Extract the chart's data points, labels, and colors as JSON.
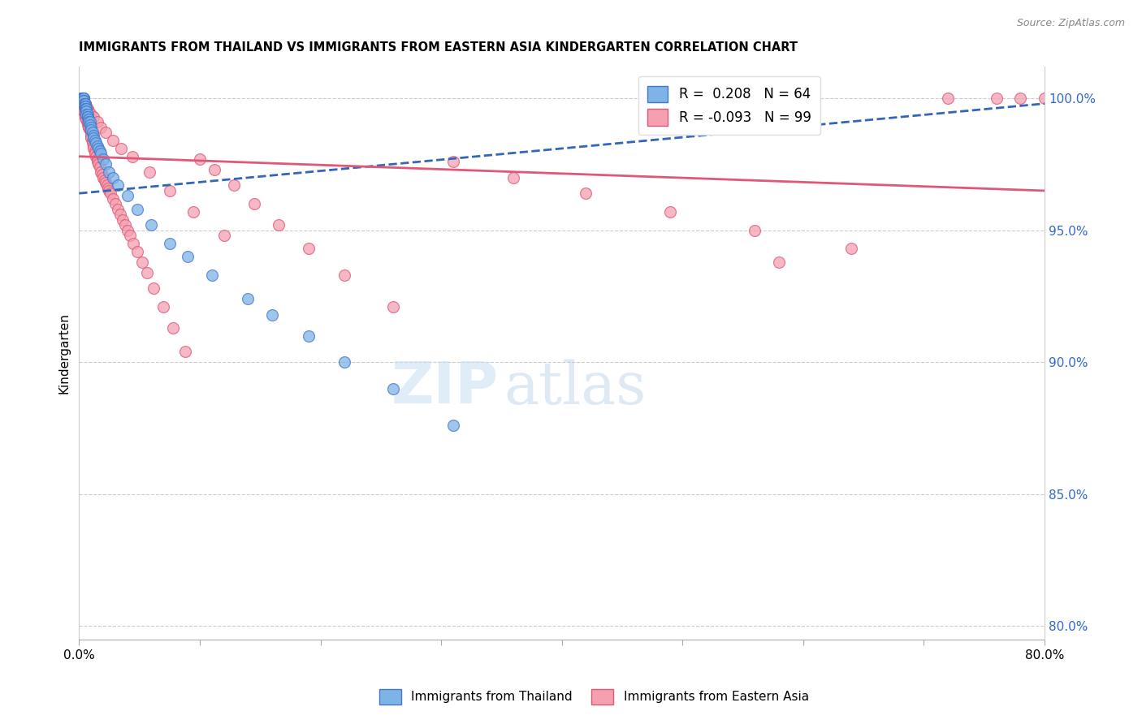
{
  "title": "IMMIGRANTS FROM THAILAND VS IMMIGRANTS FROM EASTERN ASIA KINDERGARTEN CORRELATION CHART",
  "source": "Source: ZipAtlas.com",
  "ylabel_label": "Kindergarten",
  "right_ytick_vals": [
    1.0,
    0.95,
    0.9,
    0.85,
    0.8
  ],
  "right_ytick_labels": [
    "100.0%",
    "95.0%",
    "90.0%",
    "85.0%",
    "80.0%"
  ],
  "xlim": [
    0.0,
    0.8
  ],
  "ylim": [
    0.795,
    1.012
  ],
  "blue_R": "0.208",
  "blue_N": "64",
  "pink_R": "-0.093",
  "pink_N": "99",
  "blue_color": "#7EB3E8",
  "pink_color": "#F4A0B0",
  "blue_edge_color": "#4477CC",
  "pink_edge_color": "#E05878",
  "blue_line_color": "#3366BB",
  "pink_line_color": "#E05878",
  "legend_label_blue": "Immigrants from Thailand",
  "legend_label_pink": "Immigrants from Eastern Asia",
  "watermark_zip": "ZIP",
  "watermark_atlas": "atlas",
  "blue_x": [
    0.002,
    0.002,
    0.003,
    0.003,
    0.003,
    0.003,
    0.003,
    0.004,
    0.004,
    0.004,
    0.004,
    0.004,
    0.004,
    0.004,
    0.005,
    0.005,
    0.005,
    0.005,
    0.005,
    0.005,
    0.005,
    0.005,
    0.005,
    0.006,
    0.006,
    0.006,
    0.006,
    0.006,
    0.007,
    0.007,
    0.007,
    0.008,
    0.008,
    0.008,
    0.009,
    0.009,
    0.01,
    0.01,
    0.011,
    0.012,
    0.012,
    0.013,
    0.014,
    0.015,
    0.016,
    0.017,
    0.018,
    0.02,
    0.022,
    0.025,
    0.028,
    0.032,
    0.04,
    0.048,
    0.06,
    0.075,
    0.09,
    0.11,
    0.14,
    0.16,
    0.19,
    0.22,
    0.26,
    0.31
  ],
  "blue_y": [
    1.0,
    1.0,
    1.0,
    1.0,
    1.0,
    1.0,
    1.0,
    1.0,
    1.0,
    1.0,
    0.999,
    0.999,
    0.999,
    0.998,
    0.998,
    0.998,
    0.998,
    0.997,
    0.997,
    0.997,
    0.997,
    0.996,
    0.996,
    0.996,
    0.996,
    0.995,
    0.995,
    0.994,
    0.994,
    0.993,
    0.993,
    0.992,
    0.992,
    0.991,
    0.991,
    0.99,
    0.989,
    0.988,
    0.987,
    0.986,
    0.985,
    0.984,
    0.983,
    0.982,
    0.981,
    0.98,
    0.979,
    0.977,
    0.975,
    0.972,
    0.97,
    0.967,
    0.963,
    0.958,
    0.952,
    0.945,
    0.94,
    0.933,
    0.924,
    0.918,
    0.91,
    0.9,
    0.89,
    0.876
  ],
  "pink_x": [
    0.002,
    0.002,
    0.003,
    0.003,
    0.003,
    0.004,
    0.004,
    0.004,
    0.004,
    0.005,
    0.005,
    0.005,
    0.005,
    0.005,
    0.006,
    0.006,
    0.006,
    0.007,
    0.007,
    0.007,
    0.008,
    0.008,
    0.008,
    0.009,
    0.009,
    0.01,
    0.01,
    0.01,
    0.011,
    0.011,
    0.012,
    0.012,
    0.013,
    0.013,
    0.014,
    0.015,
    0.015,
    0.016,
    0.017,
    0.018,
    0.019,
    0.02,
    0.021,
    0.022,
    0.023,
    0.024,
    0.025,
    0.026,
    0.028,
    0.03,
    0.032,
    0.034,
    0.036,
    0.038,
    0.04,
    0.042,
    0.045,
    0.048,
    0.052,
    0.056,
    0.062,
    0.07,
    0.078,
    0.088,
    0.1,
    0.112,
    0.128,
    0.145,
    0.165,
    0.19,
    0.22,
    0.26,
    0.31,
    0.36,
    0.42,
    0.49,
    0.56,
    0.64,
    0.72,
    0.76,
    0.8,
    0.003,
    0.005,
    0.006,
    0.007,
    0.008,
    0.01,
    0.012,
    0.015,
    0.018,
    0.022,
    0.028,
    0.035,
    0.044,
    0.058,
    0.075,
    0.095,
    0.12,
    0.58,
    0.78
  ],
  "pink_y": [
    0.998,
    0.997,
    0.997,
    0.997,
    0.996,
    0.996,
    0.996,
    0.995,
    0.995,
    0.995,
    0.994,
    0.994,
    0.993,
    0.993,
    0.993,
    0.992,
    0.992,
    0.991,
    0.991,
    0.99,
    0.99,
    0.989,
    0.989,
    0.988,
    0.988,
    0.987,
    0.986,
    0.985,
    0.984,
    0.983,
    0.982,
    0.981,
    0.98,
    0.979,
    0.978,
    0.977,
    0.976,
    0.975,
    0.974,
    0.972,
    0.971,
    0.97,
    0.969,
    0.968,
    0.967,
    0.966,
    0.965,
    0.964,
    0.962,
    0.96,
    0.958,
    0.956,
    0.954,
    0.952,
    0.95,
    0.948,
    0.945,
    0.942,
    0.938,
    0.934,
    0.928,
    0.921,
    0.913,
    0.904,
    0.977,
    0.973,
    0.967,
    0.96,
    0.952,
    0.943,
    0.933,
    0.921,
    0.976,
    0.97,
    0.964,
    0.957,
    0.95,
    0.943,
    1.0,
    1.0,
    1.0,
    0.998,
    0.997,
    0.997,
    0.996,
    0.995,
    0.994,
    0.993,
    0.991,
    0.989,
    0.987,
    0.984,
    0.981,
    0.978,
    0.972,
    0.965,
    0.957,
    0.948,
    0.938,
    1.0
  ],
  "blue_trend_x": [
    0.0,
    0.8
  ],
  "blue_trend_y": [
    0.964,
    0.998
  ],
  "pink_trend_x": [
    0.0,
    0.8
  ],
  "pink_trend_y": [
    0.978,
    0.965
  ]
}
